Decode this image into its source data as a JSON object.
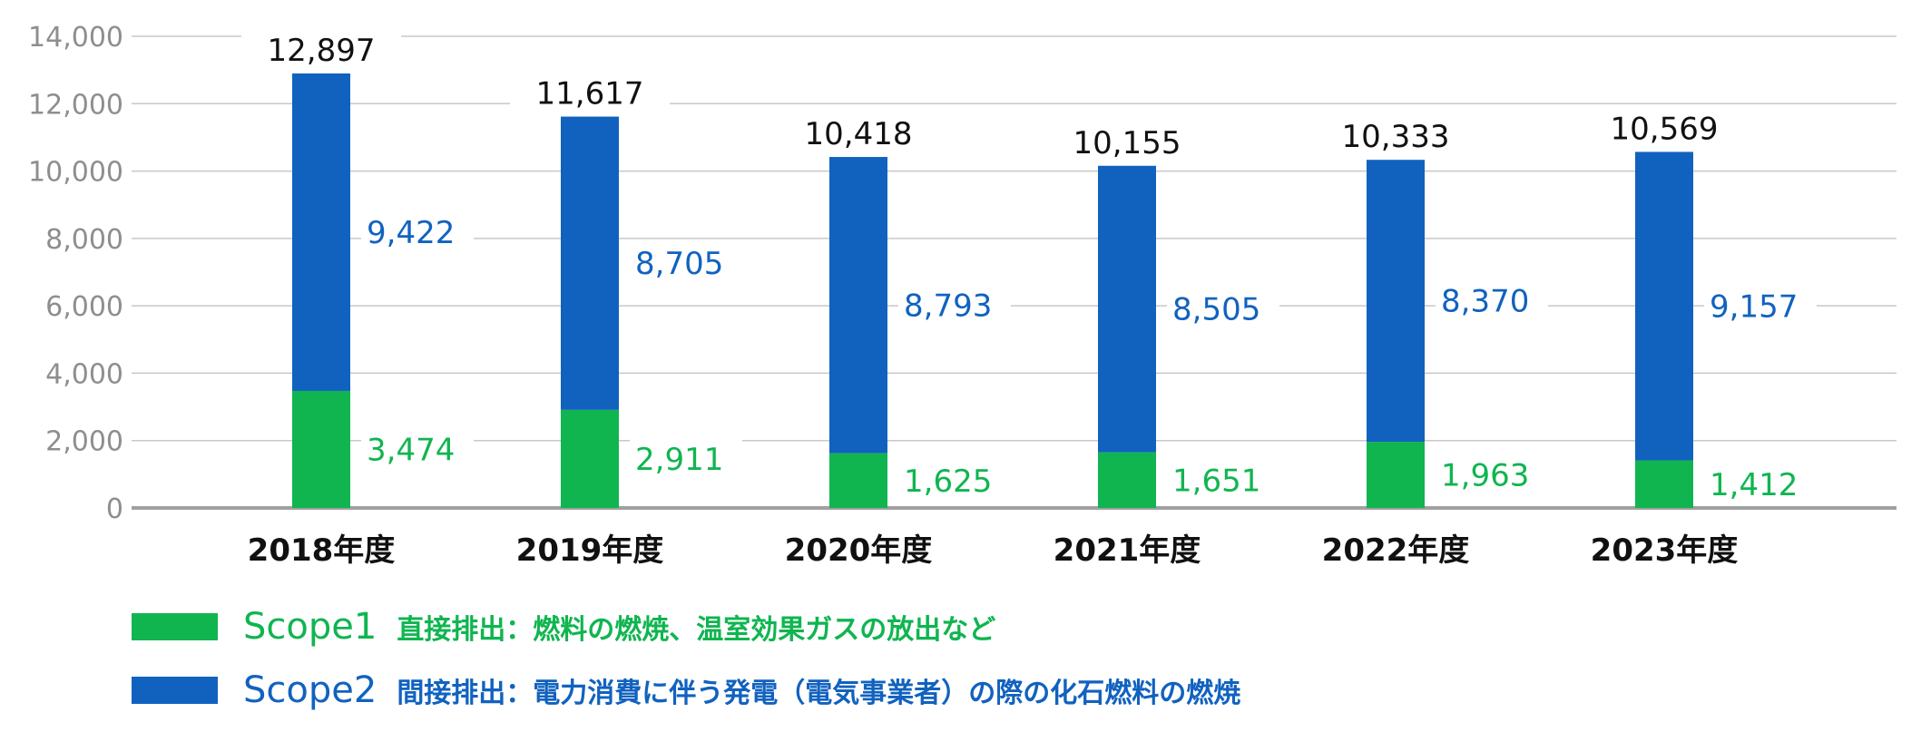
{
  "colors": {
    "scope1": "#10B550",
    "scope2": "#1162BF",
    "total_label": "#111111",
    "axis_tick": "#8E8E8E",
    "gridline": "#C8C8C8",
    "baseline": "#A0A0A0",
    "category_label": "#111111"
  },
  "chart_data": {
    "type": "bar",
    "stacked": true,
    "categories": [
      "2018年度",
      "2019年度",
      "2020年度",
      "2021年度",
      "2022年度",
      "2023年度"
    ],
    "series": [
      {
        "name": "Scope1",
        "values": [
          3474,
          2911,
          1625,
          1651,
          1963,
          1412
        ]
      },
      {
        "name": "Scope2",
        "values": [
          9422,
          8705,
          8793,
          8505,
          8370,
          9157
        ]
      }
    ],
    "totals": [
      12897,
      11617,
      10418,
      10155,
      10333,
      10569
    ],
    "data_labels": {
      "scope1": [
        "3,474",
        "2,911",
        "1,625",
        "1,651",
        "1,963",
        "1,412"
      ],
      "scope2": [
        "9,422",
        "8,705",
        "8,793",
        "8,505",
        "8,370",
        "9,157"
      ],
      "totals": [
        "12,897",
        "11,617",
        "10,418",
        "10,155",
        "10,333",
        "10,569"
      ]
    },
    "ylim": [
      0,
      14000
    ],
    "yticks": [
      0,
      2000,
      4000,
      6000,
      8000,
      10000,
      12000,
      14000
    ],
    "ytick_labels": [
      "0",
      "2,000",
      "4,000",
      "6,000",
      "8,000",
      "10,000",
      "12,000",
      "14,000"
    ],
    "grid": true,
    "legend_position": "bottom-left"
  },
  "legend": {
    "items": [
      {
        "name": "Scope1",
        "description": "直接排出：燃料の燃焼、温室効果ガスの放出など"
      },
      {
        "name": "Scope2",
        "description": "間接排出：電力消費に伴う発電（電気事業者）の際の化石燃料の燃焼"
      }
    ]
  }
}
